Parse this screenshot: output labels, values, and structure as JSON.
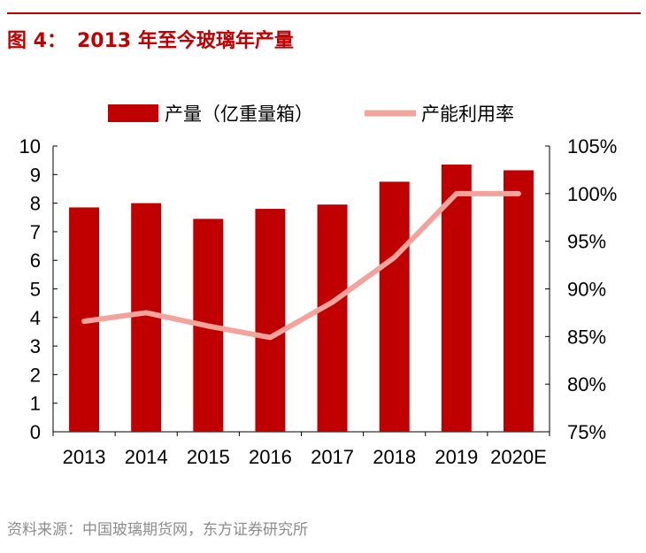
{
  "figure": {
    "label": "图 4：",
    "title": "2013 年至今玻璃年产量"
  },
  "source": "资料来源：中国玻璃期货网，东方证券研究所",
  "colors": {
    "bar": "#c00000",
    "line": "#f2a49c",
    "title": "#c00000"
  },
  "chart_data": {
    "type": "bar",
    "categories": [
      "2013",
      "2014",
      "2015",
      "2016",
      "2017",
      "2018",
      "2019",
      "2020E"
    ],
    "series": [
      {
        "name": "产量（亿重量箱）",
        "type": "bar",
        "axis": "left",
        "values": [
          7.85,
          8.0,
          7.45,
          7.8,
          7.95,
          8.75,
          9.35,
          9.15
        ]
      },
      {
        "name": "产能利用率",
        "type": "line",
        "axis": "right",
        "values": [
          86.6,
          87.5,
          86.1,
          84.9,
          88.6,
          93.3,
          100.0,
          100.0
        ]
      }
    ],
    "ylim_left": [
      0,
      10
    ],
    "yticks_left": [
      "0",
      "1",
      "2",
      "3",
      "4",
      "5",
      "6",
      "7",
      "8",
      "9",
      "10"
    ],
    "ylim_right": [
      75,
      105
    ],
    "yticks_right": [
      "75%",
      "80%",
      "85%",
      "90%",
      "95%",
      "100%",
      "105%"
    ],
    "grid": false,
    "legend": "top"
  }
}
